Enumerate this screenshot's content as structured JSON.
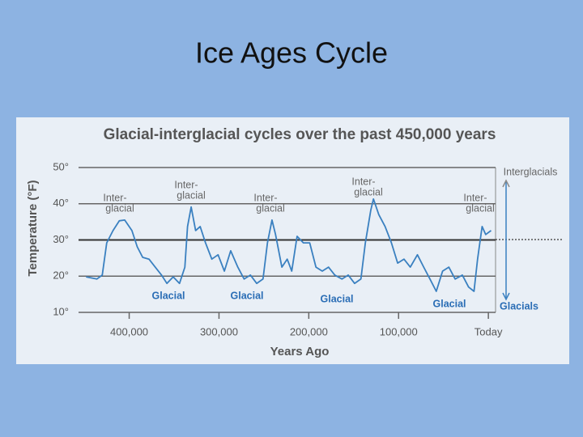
{
  "slide_title": "Ice Ages Cycle",
  "chart_data": {
    "type": "line",
    "title": "Glacial-interglacial cycles over the past 450,000 years",
    "x_label": "Years Ago",
    "y_label": "Temperature (°F)",
    "x": [
      448000,
      436000,
      430000,
      425000,
      418000,
      411000,
      405000,
      397000,
      391000,
      385000,
      378000,
      371000,
      364000,
      358000,
      351000,
      344000,
      338000,
      335000,
      331000,
      326000,
      321000,
      315000,
      308000,
      301000,
      294000,
      287000,
      279000,
      272000,
      265000,
      258000,
      251000,
      246000,
      241000,
      237000,
      230000,
      224000,
      219000,
      213000,
      206000,
      199000,
      192000,
      185000,
      178000,
      171000,
      163000,
      156000,
      149000,
      142000,
      137000,
      131000,
      128000,
      122000,
      115000,
      108000,
      101000,
      94000,
      87000,
      79000,
      72000,
      65000,
      58000,
      51000,
      44000,
      37000,
      29000,
      22000,
      16000,
      12000,
      7000,
      3000,
      -3000
    ],
    "series": [
      {
        "name": "Temperature",
        "color": "#3a80c0",
        "values": [
          19.8,
          19.2,
          20.3,
          29.2,
          32.6,
          35.3,
          35.5,
          32.6,
          28.1,
          25.2,
          24.7,
          22.5,
          20.3,
          18.0,
          19.8,
          18.0,
          22.5,
          33.7,
          39.1,
          32.6,
          33.7,
          29.2,
          24.7,
          25.9,
          21.4,
          27.0,
          22.5,
          19.2,
          20.3,
          18.0,
          19.2,
          29.2,
          35.5,
          31.5,
          22.5,
          24.7,
          21.4,
          31.0,
          29.2,
          29.2,
          22.5,
          21.4,
          22.5,
          20.3,
          19.2,
          20.3,
          18.0,
          19.2,
          29.2,
          38.2,
          41.3,
          37.0,
          33.7,
          29.2,
          23.6,
          24.7,
          22.5,
          25.9,
          22.5,
          19.2,
          15.8,
          21.4,
          22.5,
          19.2,
          20.3,
          17.0,
          15.8,
          24.7,
          33.7,
          31.5,
          32.6
        ]
      }
    ],
    "xlim": [
      451000,
      -8000
    ],
    "xticks": [
      {
        "value": 400000,
        "label": "400,000"
      },
      {
        "value": 300000,
        "label": "300,000"
      },
      {
        "value": 200000,
        "label": "200,000"
      },
      {
        "value": 100000,
        "label": "100,000"
      },
      {
        "value": 0,
        "label": "Today"
      }
    ],
    "ylim": [
      10,
      50
    ],
    "yticks": [
      {
        "value": 50,
        "label": "50°"
      },
      {
        "value": 40,
        "label": "40°"
      },
      {
        "value": 30,
        "label": "30°"
      },
      {
        "value": 20,
        "label": "20°"
      },
      {
        "value": 10,
        "label": "10°"
      }
    ],
    "grid": true,
    "annotations": [
      [
        "Inter-",
        "glacial"
      ],
      [
        "Inter-",
        "glacial"
      ],
      [
        "Inter-",
        "glacial"
      ],
      [
        "Inter-",
        "glacial"
      ],
      [
        "Inter-",
        "glacial"
      ],
      [
        "Glacial"
      ],
      [
        "Glacial"
      ],
      [
        "Glacial"
      ],
      [
        "Glacial"
      ],
      [
        "Interglacials"
      ],
      [
        "Glacials"
      ]
    ]
  }
}
